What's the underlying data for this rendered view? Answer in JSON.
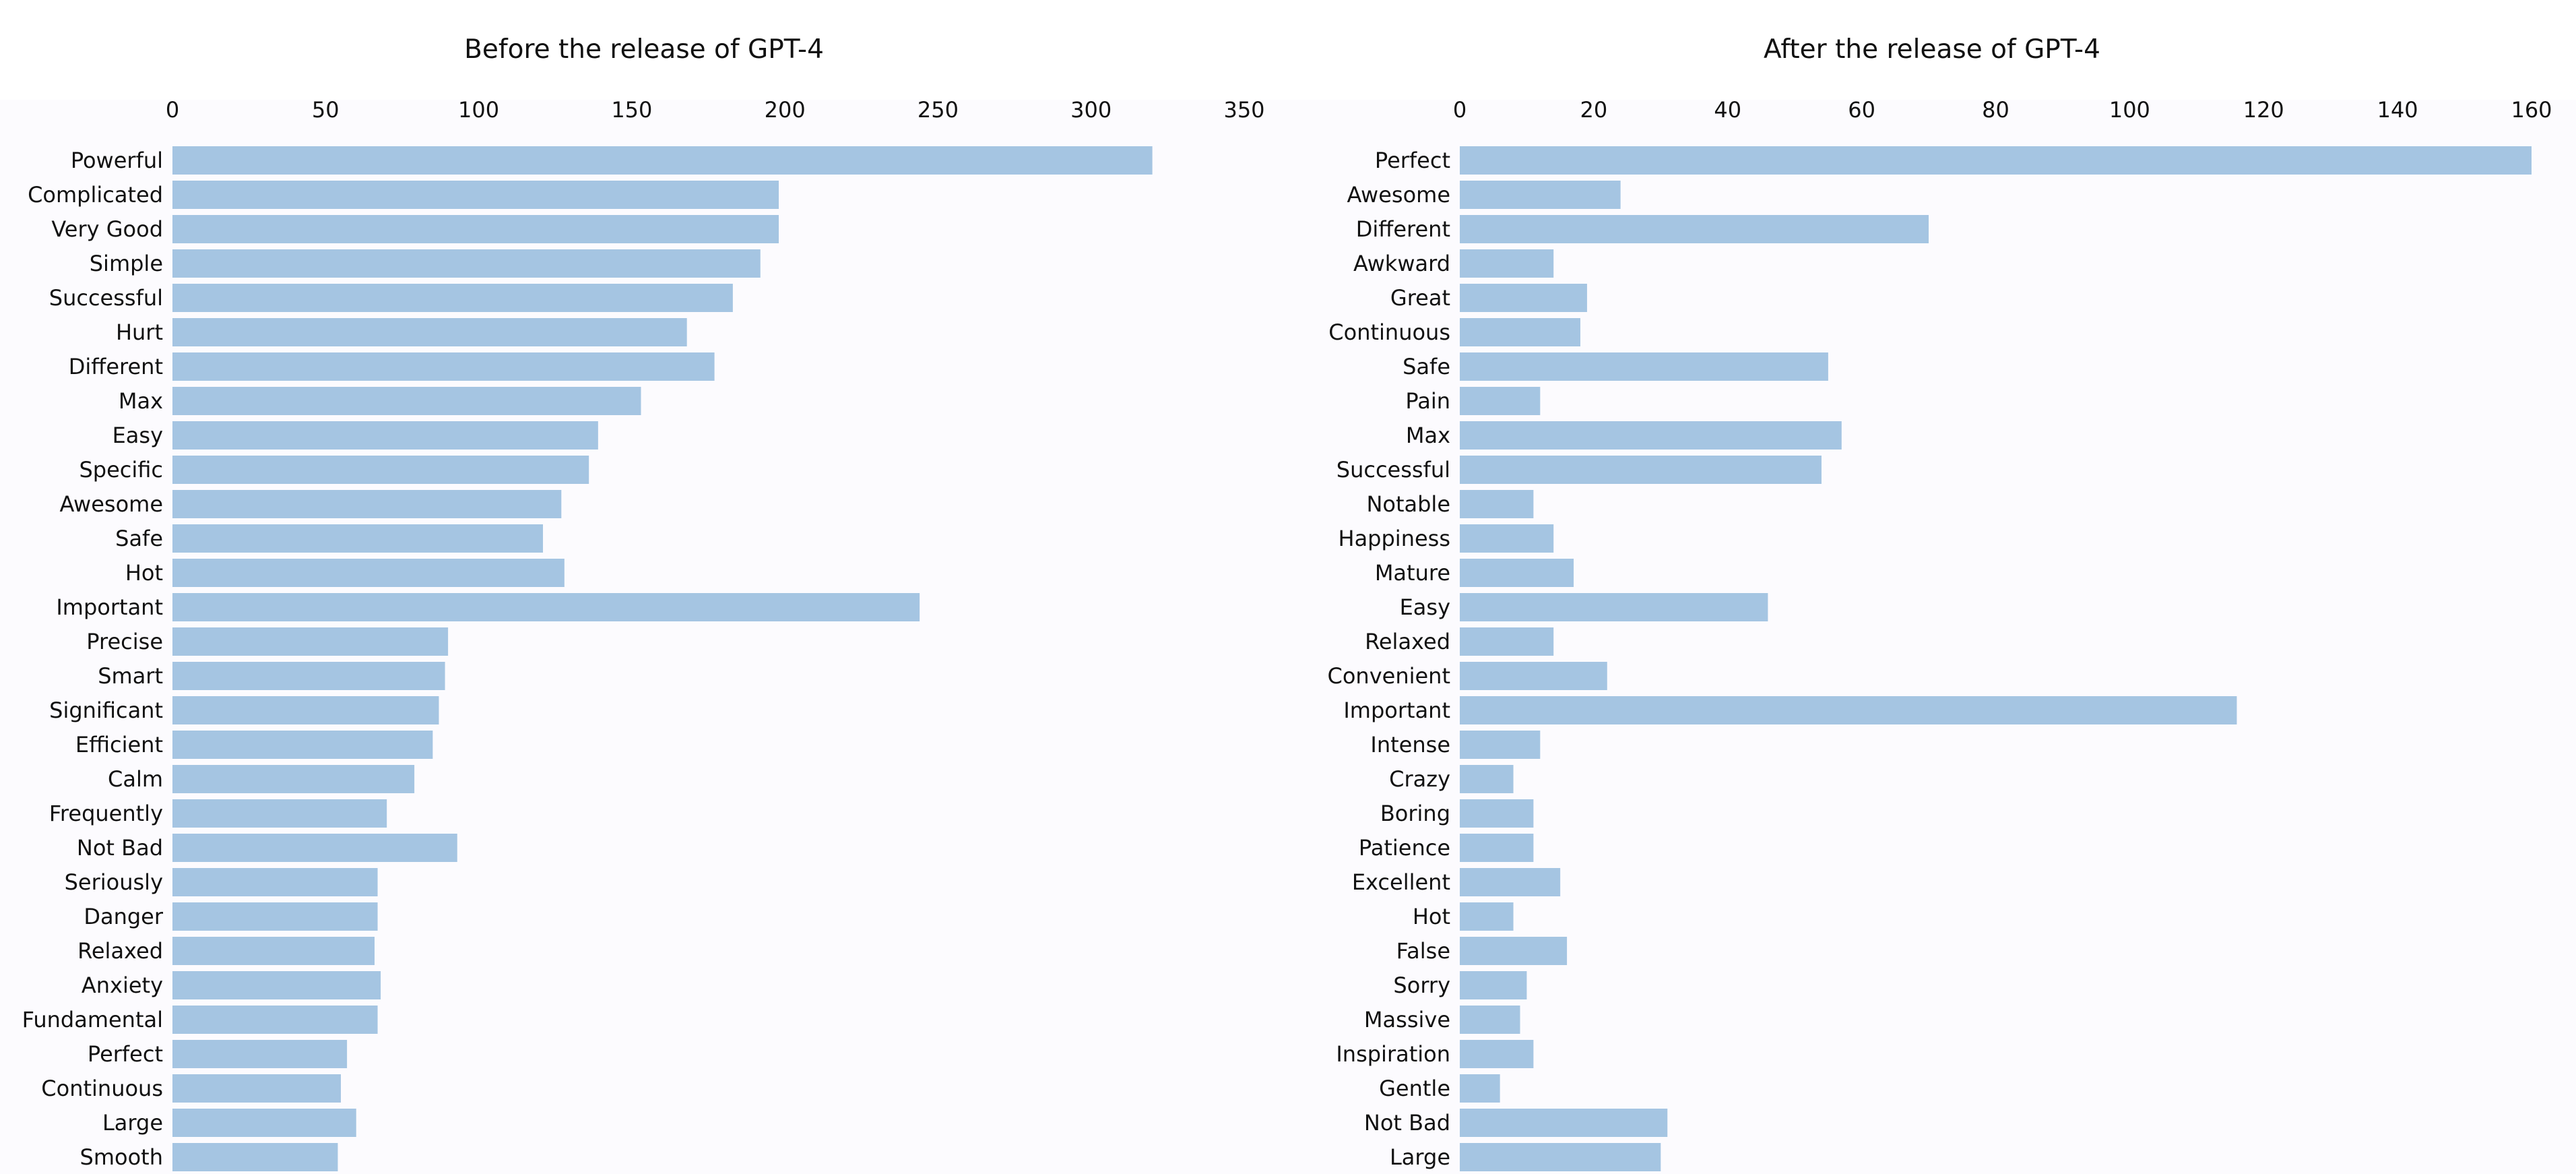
{
  "chart_data": [
    {
      "type": "bar",
      "orientation": "horizontal",
      "title": "Before the release of GPT-4",
      "xlabel": "",
      "ylabel": "",
      "xlim": [
        0,
        350
      ],
      "ticks": [
        "0",
        "50",
        "100",
        "150",
        "200",
        "250",
        "300",
        "350"
      ],
      "x_axis_position": "top",
      "grid": false,
      "bar_color": "#a5c5e2",
      "background_color": "#fcfbfe",
      "categories": [
        "Powerful",
        "Complicated",
        "Very Good",
        "Simple",
        "Successful",
        "Hurt",
        "Different",
        "Max",
        "Easy",
        "Specific",
        "Awesome",
        "Safe",
        "Hot",
        "Important",
        "Precise",
        "Smart",
        "Significant",
        "Efficient",
        "Calm",
        "Frequently",
        "Not Bad",
        "Seriously",
        "Danger",
        "Relaxed",
        "Anxiety",
        "Fundamental",
        "Perfect",
        "Continuous",
        "Large",
        "Smooth"
      ],
      "values": [
        320,
        198,
        198,
        192,
        183,
        168,
        177,
        153,
        139,
        136,
        127,
        121,
        128,
        244,
        90,
        89,
        87,
        85,
        79,
        70,
        93,
        67,
        67,
        66,
        68,
        67,
        57,
        55,
        60,
        54
      ]
    },
    {
      "type": "bar",
      "orientation": "horizontal",
      "title": "After the release of GPT-4",
      "xlabel": "",
      "ylabel": "",
      "xlim": [
        0,
        160
      ],
      "ticks": [
        "0",
        "20",
        "40",
        "60",
        "80",
        "100",
        "120",
        "140",
        "160"
      ],
      "x_axis_position": "top",
      "grid": false,
      "bar_color": "#a5c5e2",
      "background_color": "#fcfbfe",
      "categories": [
        "Perfect",
        "Awesome",
        "Different",
        "Awkward",
        "Great",
        "Continuous",
        "Safe",
        "Pain",
        "Max",
        "Successful",
        "Notable",
        "Happiness",
        "Mature",
        "Easy",
        "Relaxed",
        "Convenient",
        "Important",
        "Intense",
        "Crazy",
        "Boring",
        "Patience",
        "Excellent",
        "Hot",
        "False",
        "Sorry",
        "Massive",
        "Inspiration",
        "Gentle",
        "Not Bad",
        "Large"
      ],
      "values": [
        160,
        24,
        70,
        14,
        19,
        18,
        55,
        12,
        57,
        54,
        11,
        14,
        17,
        46,
        14,
        22,
        116,
        12,
        8,
        11,
        11,
        15,
        8,
        16,
        10,
        9,
        11,
        6,
        31,
        30
      ]
    }
  ]
}
